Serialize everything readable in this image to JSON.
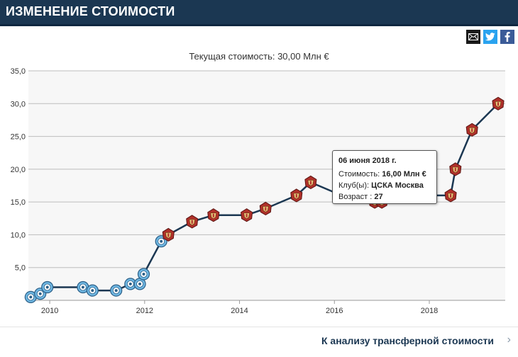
{
  "header": {
    "title": "ИЗМЕНЕНИЕ СТОИМОСТИ"
  },
  "share": {
    "icons": [
      "mail-icon",
      "twitter-icon",
      "facebook-icon"
    ]
  },
  "colors": {
    "header": "#1b3752",
    "line": "#1b3752",
    "club_early": "#6fb7e2",
    "club_cska": "#b0302a",
    "plot_bg": "#f7f7f7"
  },
  "chart_data": {
    "type": "line",
    "title": "Текущая стоимость: 30,00 Млн €",
    "xlabel": "",
    "ylabel": "",
    "x_ticks": [
      "2010",
      "2012",
      "2014",
      "2016",
      "2018"
    ],
    "y_ticks": [
      "5,0",
      "10,0",
      "15,0",
      "20,0",
      "25,0",
      "30,0",
      "35,0"
    ],
    "xlim": [
      2009.55,
      2019.6
    ],
    "ylim": [
      0,
      35
    ],
    "grid": true,
    "series": [
      {
        "x": [
          2009.6,
          2009.8,
          2009.95,
          2010.7,
          2010.9,
          2011.4,
          2011.7,
          2011.9,
          2011.98,
          2012.35,
          2012.5,
          2013.0,
          2013.45,
          2014.15,
          2014.55,
          2015.2,
          2015.5,
          2016.15,
          2016.85,
          2017.0,
          2017.5,
          2017.95,
          2018.45,
          2018.55,
          2018.9,
          2019.45
        ],
        "values": [
          0.5,
          1.0,
          2.0,
          2.0,
          1.5,
          1.5,
          2.5,
          2.5,
          4.0,
          9.0,
          10.0,
          12.0,
          13.0,
          13.0,
          14.0,
          16.0,
          18.0,
          16.0,
          15.0,
          15.0,
          16.0,
          16.0,
          16.0,
          20.0,
          26.0,
          30.0
        ],
        "club": [
          "early",
          "early",
          "early",
          "early",
          "early",
          "early",
          "early",
          "early",
          "early",
          "early",
          "cska",
          "cska",
          "cska",
          "cska",
          "cska",
          "cska",
          "cska",
          "cska",
          "cska",
          "cska",
          "cska",
          "cska",
          "cska",
          "cska",
          "cska",
          "cska"
        ]
      }
    ]
  },
  "tooltip": {
    "date": "06 июня 2018 г.",
    "value_label": "Стоимость:",
    "value": "16,00 Млн €",
    "club_label": "Клуб(ы):",
    "club": "ЦСКА Москва",
    "age_label": "Возраст :",
    "age": "27"
  },
  "footer": {
    "link": "К анализу трансферной стоимости"
  }
}
